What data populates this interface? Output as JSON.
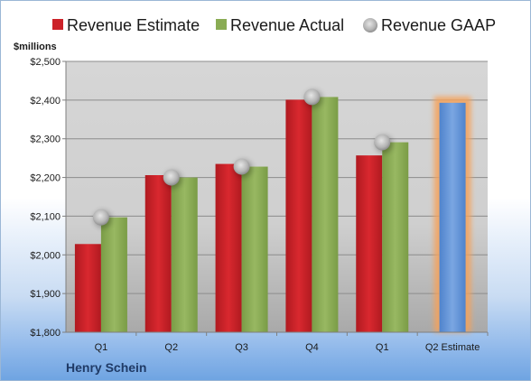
{
  "chart_data": {
    "type": "bar",
    "company": "Henry Schein",
    "ylabel": "$millions",
    "ylim": [
      1800,
      2500
    ],
    "yticks": [
      "$1,800",
      "$1,900",
      "$2,000",
      "$2,100",
      "$2,200",
      "$2,300",
      "$2,400",
      "$2,500"
    ],
    "ytick_values": [
      1800,
      1900,
      2000,
      2100,
      2200,
      2300,
      2400,
      2500
    ],
    "categories": [
      "Q1",
      "Q2",
      "Q3",
      "Q4",
      "Q1",
      "Q2 Estimate"
    ],
    "legend": [
      "Revenue Estimate",
      "Revenue Actual",
      "Revenue GAAP"
    ],
    "legend_position": "top",
    "grid": true,
    "series": [
      {
        "name": "Revenue Estimate",
        "color": "#cc2229",
        "values": [
          2028,
          2206,
          2235,
          2401,
          2257,
          null
        ]
      },
      {
        "name": "Revenue Actual",
        "color": "#8aac54",
        "values": [
          2097,
          2200,
          2228,
          2408,
          2291,
          null
        ]
      },
      {
        "name": "Revenue GAAP",
        "color": "#bfbfbf",
        "values": [
          2097,
          2200,
          2228,
          2408,
          2291,
          null
        ]
      }
    ],
    "forecast": {
      "category": "Q2 Estimate",
      "value": 2393,
      "color": "#5b8fd6",
      "highlight": "#f5a25a"
    }
  }
}
